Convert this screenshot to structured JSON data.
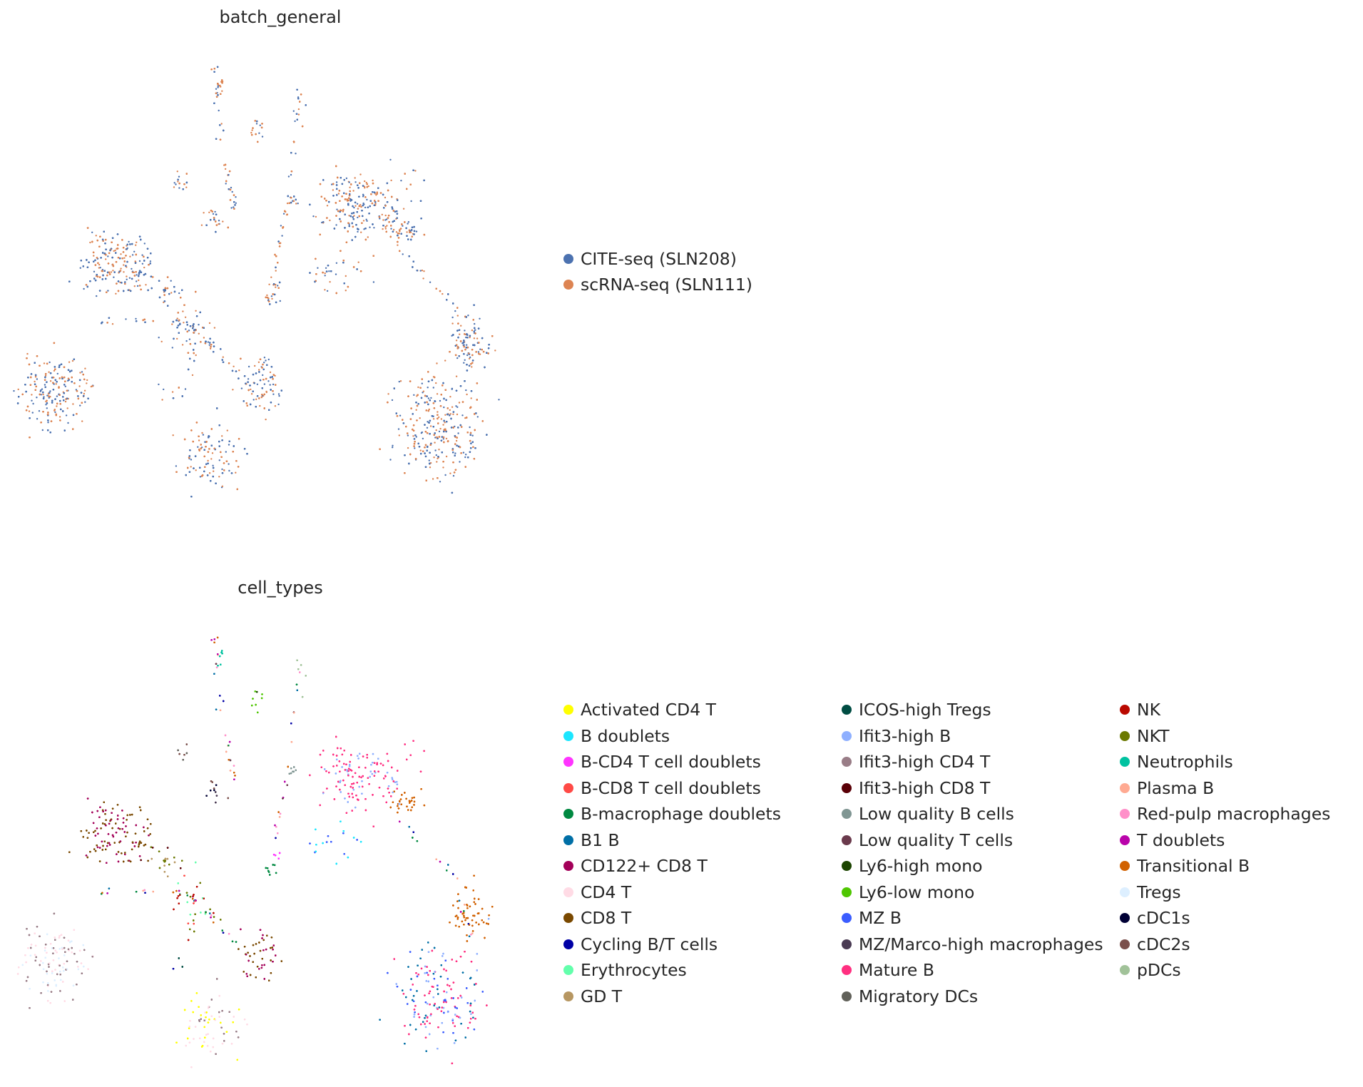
{
  "chart_data": [
    {
      "type": "scatter",
      "title": "batch_general",
      "xlabel": "",
      "ylabel": "",
      "grid": false,
      "axes": false,
      "legend_placement": "right",
      "series": [
        {
          "name": "CITE-seq (SLN208)",
          "color": "#4c72b0"
        },
        {
          "name": "scRNA-seq (SLN111)",
          "color": "#dd8452"
        }
      ]
    },
    {
      "type": "scatter",
      "title": "cell_types",
      "xlabel": "",
      "ylabel": "",
      "grid": false,
      "axes": false,
      "legend_placement": "right",
      "legend_columns": 3,
      "series": [
        {
          "name": "Activated CD4 T",
          "color": "#ffff00"
        },
        {
          "name": "B doublets",
          "color": "#1ce6ff"
        },
        {
          "name": "B-CD4 T cell doublets",
          "color": "#ff34ff"
        },
        {
          "name": "B-CD8 T cell doublets",
          "color": "#ff4a46"
        },
        {
          "name": "B-macrophage doublets",
          "color": "#008941"
        },
        {
          "name": "B1 B",
          "color": "#006fa6"
        },
        {
          "name": "CD122+ CD8 T",
          "color": "#a30059"
        },
        {
          "name": "CD4 T",
          "color": "#ffdbe5"
        },
        {
          "name": "CD8 T",
          "color": "#7a4900"
        },
        {
          "name": "Cycling B/T cells",
          "color": "#0000a6"
        },
        {
          "name": "Erythrocytes",
          "color": "#63ffac"
        },
        {
          "name": "GD T",
          "color": "#b79762"
        },
        {
          "name": "ICOS-high Tregs",
          "color": "#004d43"
        },
        {
          "name": "Ifit3-high B",
          "color": "#8fb0ff"
        },
        {
          "name": "Ifit3-high CD4 T",
          "color": "#997d87"
        },
        {
          "name": "Ifit3-high CD8 T",
          "color": "#5a0007"
        },
        {
          "name": "Low quality B cells",
          "color": "#809693"
        },
        {
          "name": "Low quality T cells",
          "color": "#6a3a4c"
        },
        {
          "name": "Ly6-high mono",
          "color": "#1b4400"
        },
        {
          "name": "Ly6-low mono",
          "color": "#4fc601"
        },
        {
          "name": "MZ B",
          "color": "#3b5dff"
        },
        {
          "name": "MZ/Marco-high macrophages",
          "color": "#4a3b53"
        },
        {
          "name": "Mature B",
          "color": "#ff2f80"
        },
        {
          "name": "Migratory DCs",
          "color": "#61615a"
        },
        {
          "name": "NK",
          "color": "#ba0900"
        },
        {
          "name": "NKT",
          "color": "#6b7900"
        },
        {
          "name": "Neutrophils",
          "color": "#00c2a0"
        },
        {
          "name": "Plasma B",
          "color": "#ffaa92"
        },
        {
          "name": "Red-pulp macrophages",
          "color": "#ff90c9"
        },
        {
          "name": "T doublets",
          "color": "#b903aa"
        },
        {
          "name": "Transitional B",
          "color": "#d16100"
        },
        {
          "name": "Tregs",
          "color": "#ddefff"
        },
        {
          "name": "cDC1s",
          "color": "#000035"
        },
        {
          "name": "cDC2s",
          "color": "#7b4f4b"
        },
        {
          "name": "pDCs",
          "color": "#a1c299"
        }
      ]
    }
  ]
}
